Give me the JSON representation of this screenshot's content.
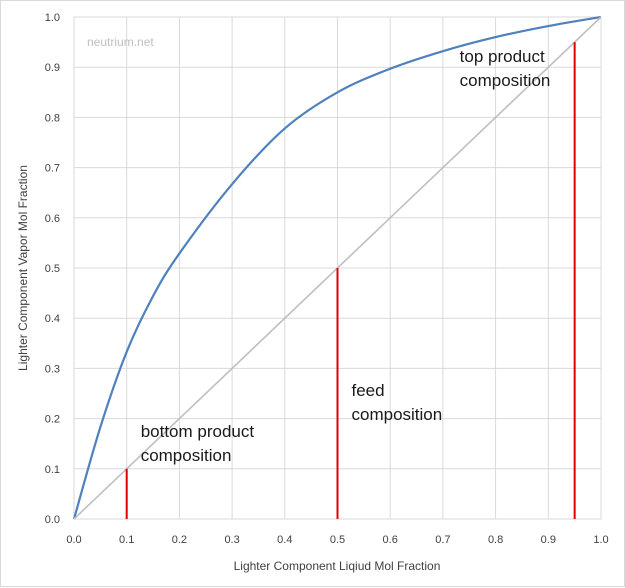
{
  "chart_data": {
    "type": "line",
    "watermark": "neutrium.net",
    "xlabel": "Lighter Component  Liqiud Mol Fraction",
    "ylabel": "Lighter Component Vapor Mol Fraction",
    "xlim": [
      0,
      1
    ],
    "ylim": [
      0,
      1
    ],
    "x_ticks": [
      "0.0",
      "0.1",
      "0.2",
      "0.3",
      "0.4",
      "0.5",
      "0.6",
      "0.7",
      "0.8",
      "0.9",
      "1.0"
    ],
    "y_ticks": [
      "0.0",
      "0.1",
      "0.2",
      "0.3",
      "0.4",
      "0.5",
      "0.6",
      "0.7",
      "0.8",
      "0.9",
      "1.0"
    ],
    "grid": true,
    "series": [
      {
        "kind": "equilibrium-curve",
        "color": "#4f81bd",
        "x": [
          0.0,
          0.05,
          0.1,
          0.15,
          0.2,
          0.3,
          0.4,
          0.5,
          0.6,
          0.7,
          0.8,
          0.9,
          1.0
        ],
        "y": [
          0.0,
          0.183,
          0.333,
          0.444,
          0.529,
          0.667,
          0.778,
          0.85,
          0.897,
          0.932,
          0.96,
          0.982,
          1.0
        ]
      },
      {
        "kind": "diagonal",
        "color": "#bfbfbf",
        "x": [
          0.0,
          1.0
        ],
        "y": [
          0.0,
          1.0
        ]
      }
    ],
    "markers": [
      {
        "x": 0.1,
        "y": 0.1,
        "color": "#e00000",
        "label_lines": [
          "bottom product",
          "composition"
        ]
      },
      {
        "x": 0.5,
        "y": 0.5,
        "color": "#e00000",
        "label_lines": [
          "feed",
          "composition"
        ]
      },
      {
        "x": 0.95,
        "y": 0.95,
        "color": "#e00000",
        "label_lines": [
          "top product",
          "composition"
        ]
      }
    ]
  }
}
